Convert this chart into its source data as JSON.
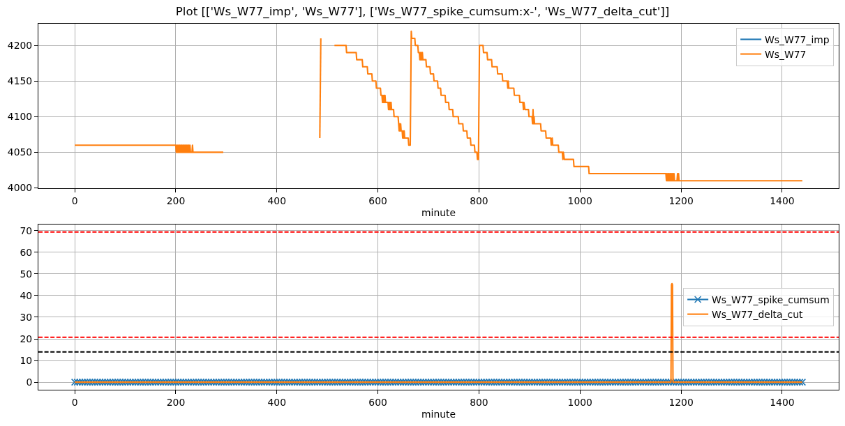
{
  "chart_data": [
    {
      "type": "line",
      "title": "Plot [['Ws_W77_imp', 'Ws_W77'], ['Ws_W77_spike_cumsum:x-', 'Ws_W77_delta_cut']]",
      "xlabel": "minute",
      "xlim": [
        -72,
        1512
      ],
      "ylim": [
        3999.5,
        4230.5
      ],
      "xticks": [
        0,
        200,
        400,
        600,
        800,
        1000,
        1200,
        1400
      ],
      "yticks": [
        4000,
        4050,
        4100,
        4150,
        4200
      ],
      "grid": true,
      "legend": "top right",
      "series": [
        {
          "name": "Ws_W77_imp",
          "color": "#1f77b4",
          "values": [
            null
          ]
        },
        {
          "name": "Ws_W77",
          "color": "#ff7f0e",
          "x": [
            0,
            200,
            201,
            202,
            203,
            204,
            205,
            206,
            207,
            208,
            209,
            210,
            211,
            212,
            213,
            214,
            215,
            216,
            217,
            218,
            219,
            220,
            221,
            222,
            223,
            224,
            225,
            226,
            227,
            228,
            229,
            232,
            233,
            234,
            294,
            295,
            485,
            487,
            488,
            514,
            537,
            538,
            557,
            558,
            569,
            570,
            579,
            580,
            588,
            589,
            596,
            597,
            605,
            606,
            608,
            609,
            610,
            611,
            612,
            613,
            614,
            615,
            616,
            620,
            621,
            622,
            623,
            624,
            625,
            626,
            627,
            628,
            631,
            632,
            640,
            641,
            642,
            643,
            644,
            645,
            646,
            648,
            649,
            650,
            651,
            652,
            653,
            660,
            661,
            664,
            666,
            667,
            673,
            674,
            679,
            680,
            682,
            683,
            684,
            685,
            686,
            687,
            688,
            689,
            695,
            696,
            703,
            704,
            710,
            711,
            718,
            719,
            724,
            725,
            733,
            734,
            740,
            741,
            748,
            749,
            759,
            760,
            768,
            769,
            776,
            777,
            783,
            784,
            791,
            792,
            796,
            797,
            799,
            801,
            808,
            809,
            816,
            817,
            825,
            826,
            836,
            837,
            846,
            847,
            856,
            857,
            858,
            859,
            869,
            870,
            880,
            881,
            887,
            888,
            889,
            891,
            898,
            899,
            905,
            906,
            907,
            908,
            909,
            910,
            922,
            923,
            932,
            933,
            942,
            943,
            945,
            946,
            957,
            958,
            965,
            966,
            967,
            969,
            987,
            988,
            1017,
            1018,
            1170,
            1171,
            1172,
            1173,
            1174,
            1175,
            1176,
            1177,
            1178,
            1179,
            1180,
            1181,
            1182,
            1183,
            1184,
            1185,
            1186,
            1187,
            1192,
            1193,
            1194,
            1195,
            1196,
            1440
          ],
          "values": [
            4060,
            4060,
            4050,
            4060,
            4050,
            4060,
            4050,
            4060,
            4050,
            4060,
            4050,
            4060,
            4050,
            4060,
            4050,
            4060,
            4050,
            4060,
            4050,
            4060,
            4050,
            4060,
            4050,
            4060,
            4050,
            4060,
            4050,
            4060,
            4050,
            4060,
            4050,
            4050,
            4060,
            4050,
            4050,
            null,
            4070,
            4210,
            null,
            4200,
            4200,
            4190,
            4190,
            4180,
            4180,
            4170,
            4170,
            4160,
            4160,
            4150,
            4150,
            4140,
            4140,
            4130,
            4130,
            4120,
            4130,
            4120,
            4130,
            4120,
            4130,
            4120,
            4120,
            4120,
            4110,
            4120,
            4110,
            4120,
            4110,
            4120,
            4110,
            4110,
            4110,
            4100,
            4100,
            4090,
            4080,
            4090,
            4080,
            4090,
            4080,
            4080,
            4070,
            4080,
            4070,
            4080,
            4070,
            4070,
            4060,
            4060,
            4220,
            4210,
            4210,
            4200,
            4200,
            4190,
            4190,
            4180,
            4190,
            4180,
            4190,
            4180,
            4190,
            4180,
            4180,
            4170,
            4170,
            4160,
            4160,
            4150,
            4150,
            4140,
            4140,
            4130,
            4130,
            4120,
            4120,
            4110,
            4110,
            4100,
            4100,
            4090,
            4090,
            4080,
            4080,
            4070,
            4070,
            4060,
            4060,
            4050,
            4050,
            4040,
            4040,
            4200,
            4200,
            4190,
            4190,
            4180,
            4180,
            4170,
            4170,
            4160,
            4160,
            4150,
            4150,
            4140,
            4150,
            4140,
            4140,
            4130,
            4130,
            4120,
            4120,
            4110,
            4120,
            4110,
            4110,
            4100,
            4100,
            4090,
            4110,
            4090,
            4100,
            4090,
            4090,
            4080,
            4080,
            4070,
            4070,
            4060,
            4070,
            4060,
            4060,
            4050,
            4050,
            4040,
            4050,
            4040,
            4040,
            4030,
            4030,
            4020,
            4020,
            4010,
            4020,
            4010,
            4020,
            4010,
            4020,
            4010,
            4020,
            4010,
            4020,
            4010,
            4020,
            4010,
            4020,
            4010,
            4020,
            4010,
            4010,
            4020,
            4010,
            4020,
            4010,
            4010
          ]
        }
      ]
    },
    {
      "type": "line",
      "xlabel": "minute",
      "xlim": [
        -72,
        1512
      ],
      "ylim": [
        -3.5,
        72.8
      ],
      "xticks": [
        0,
        200,
        400,
        600,
        800,
        1000,
        1200,
        1400
      ],
      "yticks": [
        0,
        10,
        20,
        30,
        40,
        50,
        60,
        70
      ],
      "grid": true,
      "legend": "right",
      "series": [
        {
          "name": "Ws_W77_spike_cumsum",
          "color": "#1f77b4",
          "marker": "cross",
          "x": [
            0,
            5,
            10,
            15,
            20,
            25,
            30,
            35,
            40,
            45,
            50,
            55,
            60,
            65,
            70,
            75,
            80,
            85,
            90,
            95,
            100,
            105,
            110,
            115,
            120,
            125,
            130,
            135,
            140,
            145,
            150,
            155,
            160,
            165,
            170,
            175,
            180,
            185,
            190,
            195,
            200,
            205,
            210,
            215,
            220,
            225,
            230,
            235,
            240,
            245,
            250,
            255,
            260,
            265,
            270,
            275,
            280,
            285,
            290,
            295,
            300,
            305,
            310,
            315,
            320,
            325,
            330,
            335,
            340,
            345,
            350,
            355,
            360,
            365,
            370,
            375,
            380,
            385,
            390,
            395,
            400,
            405,
            410,
            415,
            420,
            425,
            430,
            435,
            440,
            445,
            450,
            455,
            460,
            465,
            470,
            475,
            480,
            485,
            490,
            495,
            500,
            505,
            510,
            515,
            520,
            525,
            530,
            535,
            540,
            545,
            550,
            555,
            560,
            565,
            570,
            575,
            580,
            585,
            590,
            595,
            600,
            605,
            610,
            615,
            620,
            625,
            630,
            635,
            640,
            645,
            650,
            655,
            660,
            665,
            670,
            675,
            680,
            685,
            690,
            695,
            700,
            705,
            710,
            715,
            720,
            725,
            730,
            735,
            740,
            745,
            750,
            755,
            760,
            765,
            770,
            775,
            780,
            785,
            790,
            795,
            800,
            805,
            810,
            815,
            820,
            825,
            830,
            835,
            840,
            845,
            850,
            855,
            860,
            865,
            870,
            875,
            880,
            885,
            890,
            895,
            900,
            905,
            910,
            915,
            920,
            925,
            930,
            935,
            940,
            945,
            950,
            955,
            960,
            965,
            970,
            975,
            980,
            985,
            990,
            995,
            1000,
            1005,
            1010,
            1015,
            1020,
            1025,
            1030,
            1035,
            1040,
            1045,
            1050,
            1055,
            1060,
            1065,
            1070,
            1075,
            1080,
            1085,
            1090,
            1095,
            1100,
            1105,
            1110,
            1115,
            1120,
            1125,
            1130,
            1135,
            1140,
            1145,
            1150,
            1155,
            1160,
            1165,
            1170,
            1175,
            1180,
            1185,
            1190,
            1195,
            1200,
            1205,
            1210,
            1215,
            1220,
            1225,
            1230,
            1235,
            1240,
            1245,
            1250,
            1255,
            1260,
            1265,
            1270,
            1275,
            1280,
            1285,
            1290,
            1295,
            1300,
            1305,
            1310,
            1315,
            1320,
            1325,
            1330,
            1335,
            1340,
            1345,
            1350,
            1355,
            1360,
            1365,
            1370,
            1375,
            1380,
            1385,
            1390,
            1395,
            1400,
            1405,
            1410,
            1415,
            1420,
            1425,
            1430,
            1435,
            1440
          ],
          "values": [
            0,
            0,
            0,
            0,
            0,
            0,
            0,
            0,
            0,
            0,
            0,
            0,
            0,
            0,
            0,
            0,
            0,
            0,
            0,
            0,
            0,
            0,
            0,
            0,
            0,
            0,
            0,
            0,
            0,
            0,
            0,
            0,
            0,
            0,
            0,
            0,
            0,
            0,
            0,
            0,
            0,
            0,
            0,
            0,
            0,
            0,
            0,
            0,
            0,
            0,
            0,
            0,
            0,
            0,
            0,
            0,
            0,
            0,
            0,
            0,
            0,
            0,
            0,
            0,
            0,
            0,
            0,
            0,
            0,
            0,
            0,
            0,
            0,
            0,
            0,
            0,
            0,
            0,
            0,
            0,
            0,
            0,
            0,
            0,
            0,
            0,
            0,
            0,
            0,
            0,
            0,
            0,
            0,
            0,
            0,
            0,
            0,
            0,
            0,
            0,
            0,
            0,
            0,
            0,
            0,
            0,
            0,
            0,
            0,
            0,
            0,
            0,
            0,
            0,
            0,
            0,
            0,
            0,
            0,
            0,
            0,
            0,
            0,
            0,
            0,
            0,
            0,
            0,
            0,
            0,
            0,
            0,
            0,
            0,
            0,
            0,
            0,
            0,
            0,
            0,
            0,
            0,
            0,
            0,
            0,
            0,
            0,
            0,
            0,
            0,
            0,
            0,
            0,
            0,
            0,
            0,
            0,
            0,
            0,
            0,
            0,
            0,
            0,
            0,
            0,
            0,
            0,
            0,
            0,
            0,
            0,
            0,
            0,
            0,
            0,
            0,
            0,
            0,
            0,
            0,
            0,
            0,
            0,
            0,
            0,
            0,
            0,
            0,
            0,
            0,
            0,
            0,
            0,
            0,
            0,
            0,
            0,
            0,
            0,
            0,
            0,
            0,
            0,
            0,
            0,
            0,
            0,
            0,
            0,
            0,
            0,
            0,
            0,
            0,
            0,
            0,
            0,
            0,
            0,
            0,
            0,
            0,
            0,
            0,
            0,
            0,
            0,
            0,
            0,
            0,
            0,
            0,
            0,
            0,
            0,
            0,
            0,
            0,
            0,
            0,
            0,
            0,
            0,
            0,
            0,
            0,
            0,
            0,
            0,
            0,
            0,
            0,
            0,
            0,
            0,
            0,
            0,
            0,
            0,
            0,
            0,
            0,
            0,
            0,
            0,
            0,
            0,
            0,
            0,
            0,
            0,
            0,
            0,
            0,
            0,
            0,
            0,
            0,
            0,
            0,
            0,
            0,
            0,
            0,
            0,
            0,
            0,
            0,
            0
          ]
        },
        {
          "name": "Ws_W77_delta_cut",
          "color": "#ff7f0e",
          "x": [
            0,
            1180,
            1181,
            1182,
            1183,
            1184,
            1440
          ],
          "values": [
            0,
            0,
            45,
            45.5,
            45,
            0,
            0
          ]
        }
      ],
      "ref_lines": [
        {
          "axis": "y",
          "value": 69.3,
          "color": "#ff0000",
          "line_style": "dashed"
        },
        {
          "axis": "y",
          "value": 20.7,
          "color": "#ff0000",
          "line_style": "dashed"
        },
        {
          "axis": "y",
          "value": 14,
          "color": "#000000",
          "line_style": "dashed"
        }
      ]
    }
  ]
}
